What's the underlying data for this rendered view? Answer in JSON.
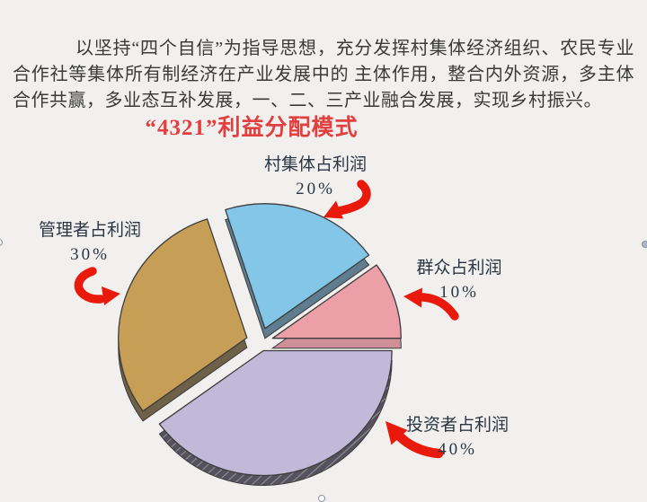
{
  "page": {
    "background": "#f1f0ef",
    "paragraph": "以坚持“四个自信”为指导思想，充分发挥村集体经济组织、农民专业合作社等集体所有制经济在产业发展中的 主体作用，整合内外资源，多主体合作共赢，多业态互补发展，一、二、三产业融合发展，实现乡村振兴。",
    "title": "“4321”利益分配模式",
    "title_color": "#e23f3f",
    "text_color": "#3a3a3a"
  },
  "chart_data": {
    "type": "pie",
    "title": "“4321”利益分配模式",
    "style": "3d-exploded",
    "start_angle_deg": 0,
    "direction": "counterclockwise",
    "legend_position": "none",
    "labels_color": "#2c3642",
    "arrow_color": "#e9190c",
    "outline_color": "#3c3c3c",
    "series": [
      {
        "label": "群众占利润",
        "pct": "10%",
        "value": 10,
        "color": "#ec9fa6",
        "side_color": "#cf8e98",
        "hatch": false
      },
      {
        "label": "村集体占利润",
        "pct": "20%",
        "value": 20,
        "color": "#84c6e8",
        "side_color": "#5f7d8f",
        "hatch": false
      },
      {
        "label": "管理者占利润",
        "pct": "30%",
        "value": 30,
        "color": "#c79e55",
        "side_color": "#6f6147",
        "hatch": false
      },
      {
        "label": "投资者占利润",
        "pct": "40%",
        "value": 40,
        "color": "#c0b9d8",
        "side_color": "#54535d",
        "hatch": true
      }
    ]
  }
}
